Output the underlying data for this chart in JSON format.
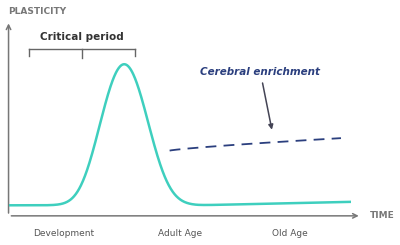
{
  "background_color": "#ffffff",
  "ylabel": "PLASTICITY",
  "xlabel": "TIME",
  "x_tick_labels": [
    "Development",
    "Adult Age",
    "Old Age"
  ],
  "critical_period_label": "Critical period",
  "line_color": "#3ecfbe",
  "dashed_color": "#2b3f7e",
  "arrow_color": "#444455",
  "enrichment_label": "Cerebral enrichment",
  "axis_color": "#777777",
  "tick_label_color": "#555555"
}
